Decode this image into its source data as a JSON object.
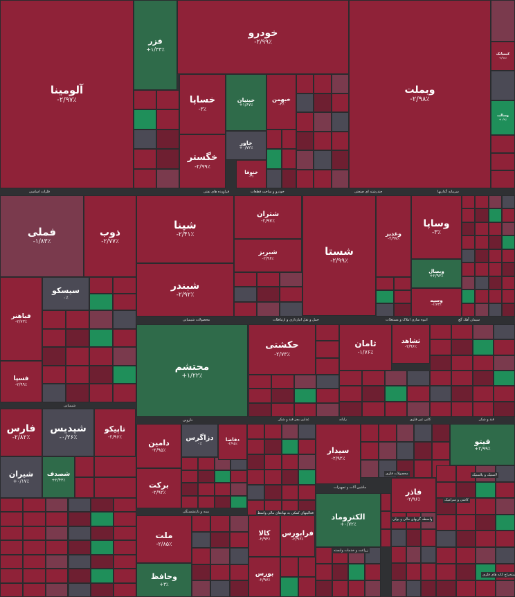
{
  "chart_data": {
    "type": "treemap",
    "sectors": [
      {
        "name": "فلزات اساسی"
      },
      {
        "name": "فراورده های نفتی"
      },
      {
        "name": "خودرو و ساخت قطعات"
      },
      {
        "name": "چندرشته ای صنعتی"
      },
      {
        "name": "سرمایه گذاریها"
      },
      {
        "name": "محصولات شیمیایی"
      },
      {
        "name": "حمل و نقل انبارداری و ارتباطات"
      },
      {
        "name": "انبوه سازی املاک و مستغلات"
      },
      {
        "name": "سیمان آهک گچ"
      },
      {
        "name": "شیمیایی"
      },
      {
        "name": "غذایی بجز قند و شکر"
      },
      {
        "name": "رایانه"
      },
      {
        "name": "کانی غیر فلزی"
      },
      {
        "name": "قند و شکر"
      },
      {
        "name": "دارویی"
      },
      {
        "name": "محصولات فلزی"
      },
      {
        "name": "لاستیک و پلاستیک"
      },
      {
        "name": "بیمه و بازنشستگی"
      },
      {
        "name": "ماشین آلات و تجهیزات"
      },
      {
        "name": "فعالیتهای کمکی به نهادهای مالی واسط"
      },
      {
        "name": "زراعت و خدمات وابسته"
      },
      {
        "name": "واسطه گریهای مالی و پولی"
      },
      {
        "name": "کاشی و سرامیک"
      },
      {
        "name": "استخراج کانه های فلزی"
      }
    ],
    "tiles": [
      {
        "symbol": "آلومینا",
        "change": "-۲/۹۷٪"
      },
      {
        "symbol": "فزر",
        "change": "+۱/۳۳٪"
      },
      {
        "symbol": "خودرو",
        "change": "-۲/۹۹٪"
      },
      {
        "symbol": "وبملت",
        "change": "-۲/۹۸٪"
      },
      {
        "symbol": "خساپا",
        "change": "-۳٪"
      },
      {
        "symbol": "خبنیان",
        "change": "+۱/۶۷٪"
      },
      {
        "symbol": "خبهمن",
        "change": "-۳٪"
      },
      {
        "symbol": "خگستر",
        "change": "-۲/۹۹٪"
      },
      {
        "symbol": "خاور",
        "change": "+۰/۷۲٪"
      },
      {
        "symbol": "خنوفا",
        "change": "-۳٪"
      },
      {
        "symbol": "فملی",
        "change": "-۱/۸۳٪"
      },
      {
        "symbol": "ذوب",
        "change": "-۲/۷۷٪"
      },
      {
        "symbol": "شپنا",
        "change": "-۲/۴۱٪"
      },
      {
        "symbol": "شتران",
        "change": "-۲/۹۷٪"
      },
      {
        "symbol": "شبریز",
        "change": "-۲/۹۶٪"
      },
      {
        "symbol": "شبندر",
        "change": "-۲/۹۲٪"
      },
      {
        "symbol": "شستا",
        "change": "-۲/۹۹٪"
      },
      {
        "symbol": "وغدیر",
        "change": "-۲/۹۷٪"
      },
      {
        "symbol": "وساپا",
        "change": "-۳٪"
      },
      {
        "symbol": "وبصال",
        "change": "+۲/۹۳٪"
      },
      {
        "symbol": "وسپه",
        "change": "-۱/۷۳٪"
      },
      {
        "symbol": "سیسکو",
        "change": "۰٪"
      },
      {
        "symbol": "فباهنر",
        "change": "-۲/۷۳٪"
      },
      {
        "symbol": "فسپا",
        "change": "-۲/۹۹٪"
      },
      {
        "symbol": "محتشم",
        "change": "+۱/۲۲٪"
      },
      {
        "symbol": "حکشتی",
        "change": "-۲/۷۳٪"
      },
      {
        "symbol": "ثامان",
        "change": "-۱/۷۶٪"
      },
      {
        "symbol": "ثشاهد",
        "change": "-۲/۹۶٪"
      },
      {
        "symbol": "فارس",
        "change": "-۲/۸۲٪"
      },
      {
        "symbol": "شپدیس",
        "change": "-۰/۲۶٪"
      },
      {
        "symbol": "تاپیکو",
        "change": "-۲/۹۶٪"
      },
      {
        "symbol": "شیران",
        "change": "+۰/۱۷٪"
      },
      {
        "symbol": "شصدف",
        "change": "+۲/۴۳٪"
      },
      {
        "symbol": "دامین",
        "change": "-۲/۹۵٪"
      },
      {
        "symbol": "دزاگرس",
        "change": "۰٪"
      },
      {
        "symbol": "برکت",
        "change": "-۲/۹۲٪"
      },
      {
        "symbol": "سیدار",
        "change": "-۲/۹۲٪"
      },
      {
        "symbol": "فیتو",
        "change": "+۲/۹۹٪"
      },
      {
        "symbol": "فاذر",
        "change": "-۲/۹۶٪"
      },
      {
        "symbol": "الکتروماد",
        "change": "+۰/۷۲٪"
      },
      {
        "symbol": "ملت",
        "change": "-۲/۸۵٪"
      },
      {
        "symbol": "وحافظ",
        "change": "+۳٪"
      },
      {
        "symbol": "کالا",
        "change": "-۲/۹۴٪"
      },
      {
        "symbol": "فرابورس",
        "change": "-۲/۹۶٪"
      },
      {
        "symbol": "بورس",
        "change": "-۲/۹۷٪"
      },
      {
        "symbol": "دقاضا",
        "change": "-۲/۹۵٪"
      },
      {
        "symbol": "کیمیاتک",
        "change": "-۲/۹۶٪"
      },
      {
        "symbol": "وسالت",
        "change": "+۰/۹٪"
      }
    ]
  },
  "colors": {
    "red": "#8f2238",
    "dark_red": "#6e1f31",
    "green": "#2f6b4a",
    "bright_green": "#1f8f5a",
    "gray": "#4b4a55",
    "mauve": "#7a3a4d",
    "background": "#2f3033"
  }
}
